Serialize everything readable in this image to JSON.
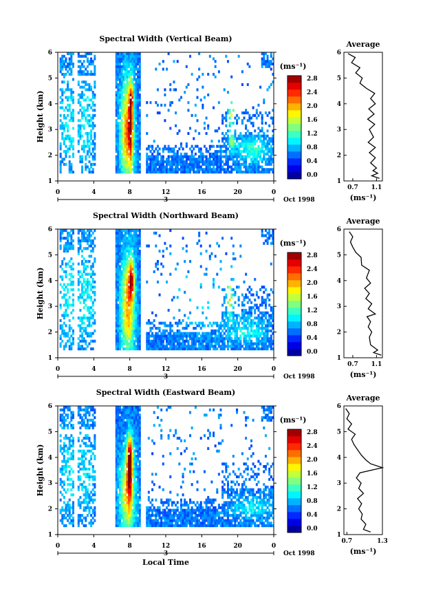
{
  "chart_data": [
    {
      "type": "heatmap",
      "title": "Spectral Width (Vertical Beam)",
      "ylabel": "Height (km)",
      "ylim": [
        1,
        6
      ],
      "yticks": [
        "1",
        "2",
        "3",
        "4",
        "5",
        "6"
      ],
      "xticks": [
        "0",
        "4",
        "8",
        "12",
        "16",
        "20",
        "0"
      ],
      "xlim": [
        0,
        24
      ],
      "day_label": "3",
      "date_label": "Oct 1998",
      "colorbar": {
        "title": "(ms⁻¹)",
        "ticks": [
          "0.0",
          "0.4",
          "0.8",
          "1.2",
          "1.6",
          "2.0",
          "2.4",
          "2.8"
        ],
        "range": [
          0,
          3.0
        ],
        "colormap": "jet"
      },
      "profile": {
        "title": "Average",
        "xlabel": "(ms⁻¹)",
        "xticks": [
          "0.7",
          "1.1"
        ],
        "xlim": [
          0.55,
          1.2
        ],
        "ylim": [
          1,
          6
        ],
        "yticks": [
          "1",
          "2",
          "3",
          "4",
          "5",
          "6"
        ],
        "points": [
          [
            1.15,
            1.1
          ],
          [
            1.02,
            1.2
          ],
          [
            1.12,
            1.3
          ],
          [
            1.04,
            1.4
          ],
          [
            1.1,
            1.5
          ],
          [
            1.0,
            1.7
          ],
          [
            1.08,
            1.9
          ],
          [
            0.98,
            2.1
          ],
          [
            1.08,
            2.3
          ],
          [
            0.96,
            2.5
          ],
          [
            1.05,
            2.7
          ],
          [
            0.98,
            3.0
          ],
          [
            1.07,
            3.2
          ],
          [
            0.95,
            3.4
          ],
          [
            1.06,
            3.6
          ],
          [
            0.97,
            3.8
          ],
          [
            1.08,
            4.0
          ],
          [
            1.0,
            4.2
          ],
          [
            1.07,
            4.4
          ],
          [
            0.93,
            4.6
          ],
          [
            0.82,
            4.8
          ],
          [
            0.86,
            5.0
          ],
          [
            0.75,
            5.2
          ],
          [
            0.82,
            5.4
          ],
          [
            0.68,
            5.6
          ],
          [
            0.74,
            5.8
          ],
          [
            0.62,
            5.95
          ]
        ]
      },
      "gaps": [
        [
          0,
          0.2
        ],
        [
          1.6,
          2.1
        ],
        [
          4.2,
          6.3
        ],
        [
          9.2,
          9.6
        ]
      ],
      "features": [
        {
          "x": 7.6,
          "y": 2.9,
          "sx": 0.7,
          "sy": 1.8,
          "v": 1.5
        },
        {
          "x": 8.0,
          "y": 3.2,
          "sx": 0.25,
          "sy": 1.6,
          "v": 1.3
        },
        {
          "x": 8.1,
          "y": 4.2,
          "sx": 0.25,
          "sy": 0.4,
          "v": 0.9
        },
        {
          "x": 1.0,
          "y": 3.2,
          "sx": 1.0,
          "sy": 1.8,
          "v": 0.35
        },
        {
          "x": 3.0,
          "y": 3.3,
          "sx": 1.0,
          "sy": 1.8,
          "v": 0.35
        },
        {
          "x": 19.2,
          "y": 3.5,
          "sx": 0.25,
          "sy": 0.5,
          "v": 1.2
        },
        {
          "x": 19.2,
          "y": 2.5,
          "sx": 0.3,
          "sy": 0.3,
          "v": 0.9
        },
        {
          "x": 21.5,
          "y": 2.2,
          "sx": 1.8,
          "sy": 0.5,
          "v": 0.55
        }
      ]
    },
    {
      "type": "heatmap",
      "title": "Spectral Width (Northward Beam)",
      "ylabel": "Height (km)",
      "ylim": [
        1,
        6
      ],
      "yticks": [
        "1",
        "2",
        "3",
        "4",
        "5",
        "6"
      ],
      "xticks": [
        "0",
        "4",
        "8",
        "12",
        "16",
        "20",
        "0"
      ],
      "xlim": [
        0,
        24
      ],
      "day_label": "3",
      "date_label": "Oct 1998",
      "colorbar": {
        "title": "(ms⁻¹)",
        "ticks": [
          "0.0",
          "0.4",
          "0.8",
          "1.2",
          "1.6",
          "2.0",
          "2.4",
          "2.8"
        ],
        "range": [
          0,
          3.0
        ],
        "colormap": "jet"
      },
      "profile": {
        "title": "Average",
        "xlabel": "(ms⁻¹)",
        "xticks": [
          "0.7",
          "1.1"
        ],
        "xlim": [
          0.55,
          1.2
        ],
        "ylim": [
          1,
          6
        ],
        "yticks": [
          "1",
          "2",
          "3",
          "4",
          "5",
          "6"
        ],
        "points": [
          [
            1.18,
            1.1
          ],
          [
            1.05,
            1.2
          ],
          [
            1.12,
            1.3
          ],
          [
            1.0,
            1.5
          ],
          [
            0.98,
            1.8
          ],
          [
            1.02,
            2.0
          ],
          [
            0.96,
            2.2
          ],
          [
            1.0,
            2.4
          ],
          [
            0.94,
            2.6
          ],
          [
            1.08,
            2.7
          ],
          [
            0.96,
            2.9
          ],
          [
            1.02,
            3.1
          ],
          [
            0.92,
            3.3
          ],
          [
            0.98,
            3.5
          ],
          [
            0.9,
            3.7
          ],
          [
            1.0,
            3.9
          ],
          [
            0.93,
            4.1
          ],
          [
            0.98,
            4.4
          ],
          [
            0.85,
            4.6
          ],
          [
            0.84,
            4.9
          ],
          [
            0.75,
            5.1
          ],
          [
            0.7,
            5.3
          ],
          [
            0.66,
            5.5
          ],
          [
            0.7,
            5.7
          ],
          [
            0.64,
            5.9
          ]
        ]
      },
      "gaps": [
        [
          0,
          0.2
        ],
        [
          1.6,
          2.1
        ],
        [
          4.2,
          6.3
        ],
        [
          9.2,
          9.6
        ]
      ],
      "features": [
        {
          "x": 7.7,
          "y": 3.0,
          "sx": 0.7,
          "sy": 1.8,
          "v": 1.5
        },
        {
          "x": 8.1,
          "y": 4.0,
          "sx": 0.3,
          "sy": 0.7,
          "v": 1.5
        },
        {
          "x": 1.0,
          "y": 3.3,
          "sx": 1.0,
          "sy": 1.8,
          "v": 0.4
        },
        {
          "x": 3.0,
          "y": 3.3,
          "sx": 1.0,
          "sy": 1.8,
          "v": 0.4
        },
        {
          "x": 19.0,
          "y": 3.3,
          "sx": 0.25,
          "sy": 0.7,
          "v": 1.2
        },
        {
          "x": 16.0,
          "y": 3.3,
          "sx": 3.0,
          "sy": 1.2,
          "v": 0.3
        },
        {
          "x": 21.0,
          "y": 2.0,
          "sx": 2.0,
          "sy": 0.5,
          "v": 0.4
        }
      ]
    },
    {
      "type": "heatmap",
      "title": "Spectral Width (Eastward Beam)",
      "ylabel": "Height (km)",
      "xlabel": "Local Time",
      "ylim": [
        1,
        6
      ],
      "yticks": [
        "1",
        "2",
        "3",
        "4",
        "5",
        "6"
      ],
      "xticks": [
        "0",
        "4",
        "8",
        "12",
        "16",
        "20",
        "0"
      ],
      "xlim": [
        0,
        24
      ],
      "day_label": "3",
      "date_label": "Oct 1998",
      "colorbar": {
        "title": "(ms⁻¹)",
        "ticks": [
          "0.0",
          "0.4",
          "0.8",
          "1.2",
          "1.6",
          "2.0",
          "2.4",
          "2.8"
        ],
        "range": [
          0,
          3.0
        ],
        "colormap": "jet"
      },
      "profile": {
        "title": "Average",
        "xlabel": "(ms⁻¹)",
        "xticks": [
          "0.7",
          "1.3"
        ],
        "xlim": [
          0.65,
          1.3
        ],
        "ylim": [
          1,
          6
        ],
        "yticks": [
          "1",
          "2",
          "3",
          "4",
          "5",
          "6"
        ],
        "points": [
          [
            1.1,
            1.1
          ],
          [
            0.98,
            1.2
          ],
          [
            1.02,
            1.4
          ],
          [
            0.94,
            1.6
          ],
          [
            0.96,
            1.8
          ],
          [
            0.9,
            2.0
          ],
          [
            0.95,
            2.2
          ],
          [
            0.88,
            2.4
          ],
          [
            0.98,
            2.6
          ],
          [
            0.9,
            2.8
          ],
          [
            0.94,
            3.0
          ],
          [
            0.86,
            3.2
          ],
          [
            0.92,
            3.4
          ],
          [
            1.3,
            3.6
          ],
          [
            1.1,
            3.75
          ],
          [
            1.02,
            3.9
          ],
          [
            0.94,
            4.1
          ],
          [
            0.88,
            4.3
          ],
          [
            0.82,
            4.5
          ],
          [
            0.78,
            4.7
          ],
          [
            0.84,
            4.9
          ],
          [
            0.72,
            5.1
          ],
          [
            0.78,
            5.3
          ],
          [
            0.7,
            5.5
          ],
          [
            0.74,
            5.7
          ],
          [
            0.68,
            5.9
          ]
        ]
      },
      "gaps": [
        [
          0,
          0.2
        ],
        [
          1.6,
          2.1
        ],
        [
          4.2,
          6.3
        ],
        [
          9.2,
          9.6
        ]
      ],
      "features": [
        {
          "x": 7.6,
          "y": 2.6,
          "sx": 0.8,
          "sy": 1.5,
          "v": 1.2
        },
        {
          "x": 7.9,
          "y": 4.0,
          "sx": 0.3,
          "sy": 0.8,
          "v": 1.7
        },
        {
          "x": 7.9,
          "y": 3.0,
          "sx": 0.3,
          "sy": 1.2,
          "v": 1.0
        },
        {
          "x": 1.0,
          "y": 3.4,
          "sx": 1.0,
          "sy": 1.8,
          "v": 0.3
        },
        {
          "x": 3.0,
          "y": 3.4,
          "sx": 1.0,
          "sy": 1.8,
          "v": 0.3
        },
        {
          "x": 19.0,
          "y": 3.8,
          "sx": 0.2,
          "sy": 0.3,
          "v": 1.2
        },
        {
          "x": 21.5,
          "y": 2.0,
          "sx": 2.0,
          "sy": 0.4,
          "v": 0.4
        }
      ]
    }
  ]
}
